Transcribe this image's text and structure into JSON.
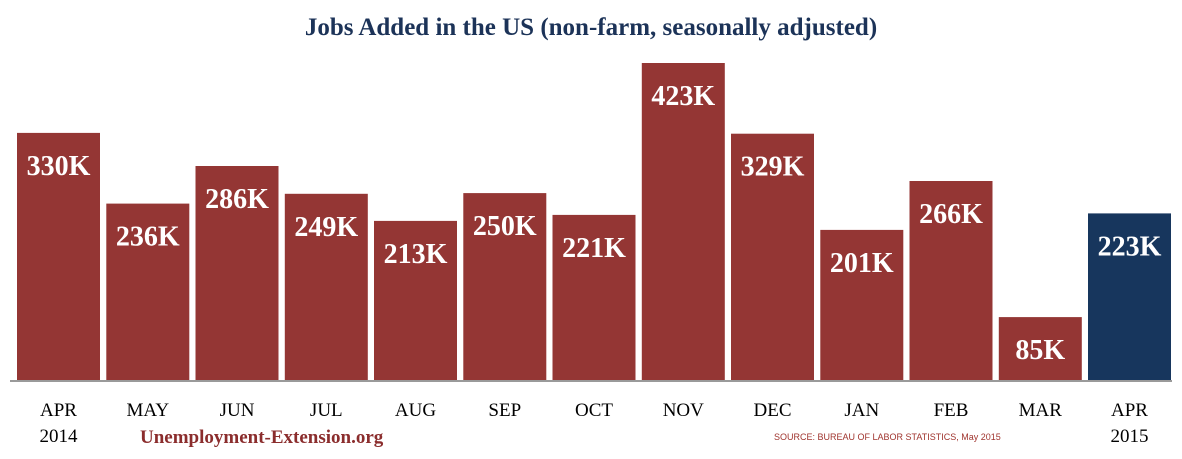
{
  "chart_data": {
    "type": "bar",
    "title": "Jobs Added in the US (non-farm, seasonally adjusted)",
    "xlabel": "",
    "ylabel": "",
    "categories": [
      {
        "line1": "APR",
        "line2": "2014"
      },
      {
        "line1": "MAY",
        "line2": ""
      },
      {
        "line1": "JUN",
        "line2": ""
      },
      {
        "line1": "JUL",
        "line2": ""
      },
      {
        "line1": "AUG",
        "line2": ""
      },
      {
        "line1": "SEP",
        "line2": ""
      },
      {
        "line1": "OCT",
        "line2": ""
      },
      {
        "line1": "NOV",
        "line2": ""
      },
      {
        "line1": "DEC",
        "line2": ""
      },
      {
        "line1": "JAN",
        "line2": ""
      },
      {
        "line1": "FEB",
        "line2": ""
      },
      {
        "line1": "MAR",
        "line2": ""
      },
      {
        "line1": "APR",
        "line2": "2015"
      }
    ],
    "values": [
      330,
      236,
      286,
      249,
      213,
      250,
      221,
      423,
      329,
      201,
      266,
      85,
      223
    ],
    "value_labels": [
      "330K",
      "236K",
      "286K",
      "249K",
      "213K",
      "250K",
      "221K",
      "423K",
      "329K",
      "201K",
      "266K",
      "85K",
      "223K"
    ],
    "ylim": [
      0,
      423
    ],
    "grid": false,
    "bar_color": "#943634",
    "highlight_color": "#17365d",
    "highlight_index": 12
  },
  "watermark": "Unemployment-Extension.org",
  "source": "SOURCE: BUREAU OF LABOR STATISTICS, May 2015"
}
